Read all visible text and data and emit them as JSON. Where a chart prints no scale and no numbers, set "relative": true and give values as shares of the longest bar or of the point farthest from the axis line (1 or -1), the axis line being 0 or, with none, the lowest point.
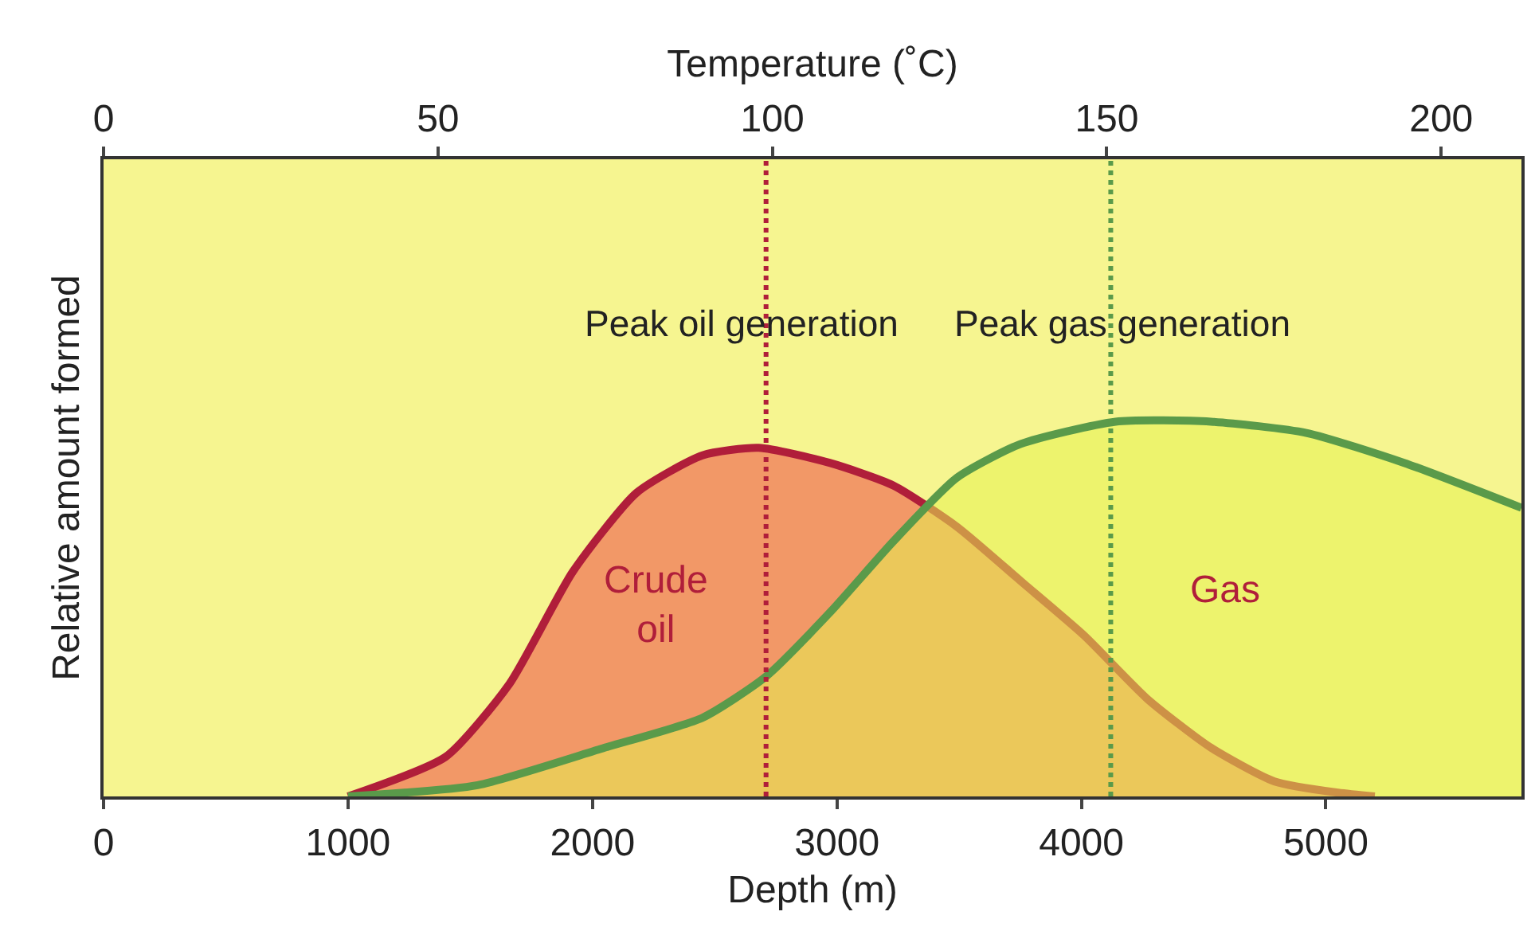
{
  "chart_data": {
    "type": "area",
    "relative": true,
    "xlabel": "Depth (m)",
    "x2label": "Temperature (˚C)",
    "ylabel": "Relative amount formed",
    "xlim": [
      0,
      5800
    ],
    "xticks": [
      0,
      1000,
      2000,
      3000,
      4000,
      5000
    ],
    "x2lim": [
      0,
      212
    ],
    "x2ticks": [
      0,
      50,
      100,
      150,
      200
    ],
    "series": [
      {
        "name": "Crude oil",
        "color": "#b01e3a",
        "x": [
          1000,
          1400,
          1660,
          1920,
          2180,
          2450,
          2680,
          2970,
          3230,
          3490,
          3760,
          4010,
          4270,
          4530,
          4790,
          5050,
          5200
        ],
        "values": [
          0,
          0.106,
          0.3,
          0.6,
          0.81,
          0.91,
          0.93,
          0.89,
          0.83,
          0.72,
          0.57,
          0.43,
          0.26,
          0.13,
          0.04,
          0.01,
          0
        ]
      },
      {
        "name": "Gas",
        "color": "#5a9a4a",
        "x": [
          1000,
          1530,
          2050,
          2450,
          2710,
          2970,
          3230,
          3490,
          3750,
          4140,
          4530,
          4920,
          5320,
          5800
        ],
        "values": [
          0,
          0.03,
          0.13,
          0.21,
          0.32,
          0.49,
          0.68,
          0.85,
          0.94,
          1.0,
          1.0,
          0.97,
          0.89,
          0.77
        ]
      }
    ],
    "ref_lines": [
      {
        "axis": "x",
        "value": 2710,
        "label": "Peak oil generation",
        "color": "#b01e3a",
        "line_style": "dotted"
      },
      {
        "axis": "x",
        "value": 4120,
        "label": "Peak gas generation",
        "color": "#5a9a4a",
        "line_style": "dotted"
      }
    ],
    "marker": "none",
    "line_style": "solid",
    "grid": false,
    "legend": false
  }
}
